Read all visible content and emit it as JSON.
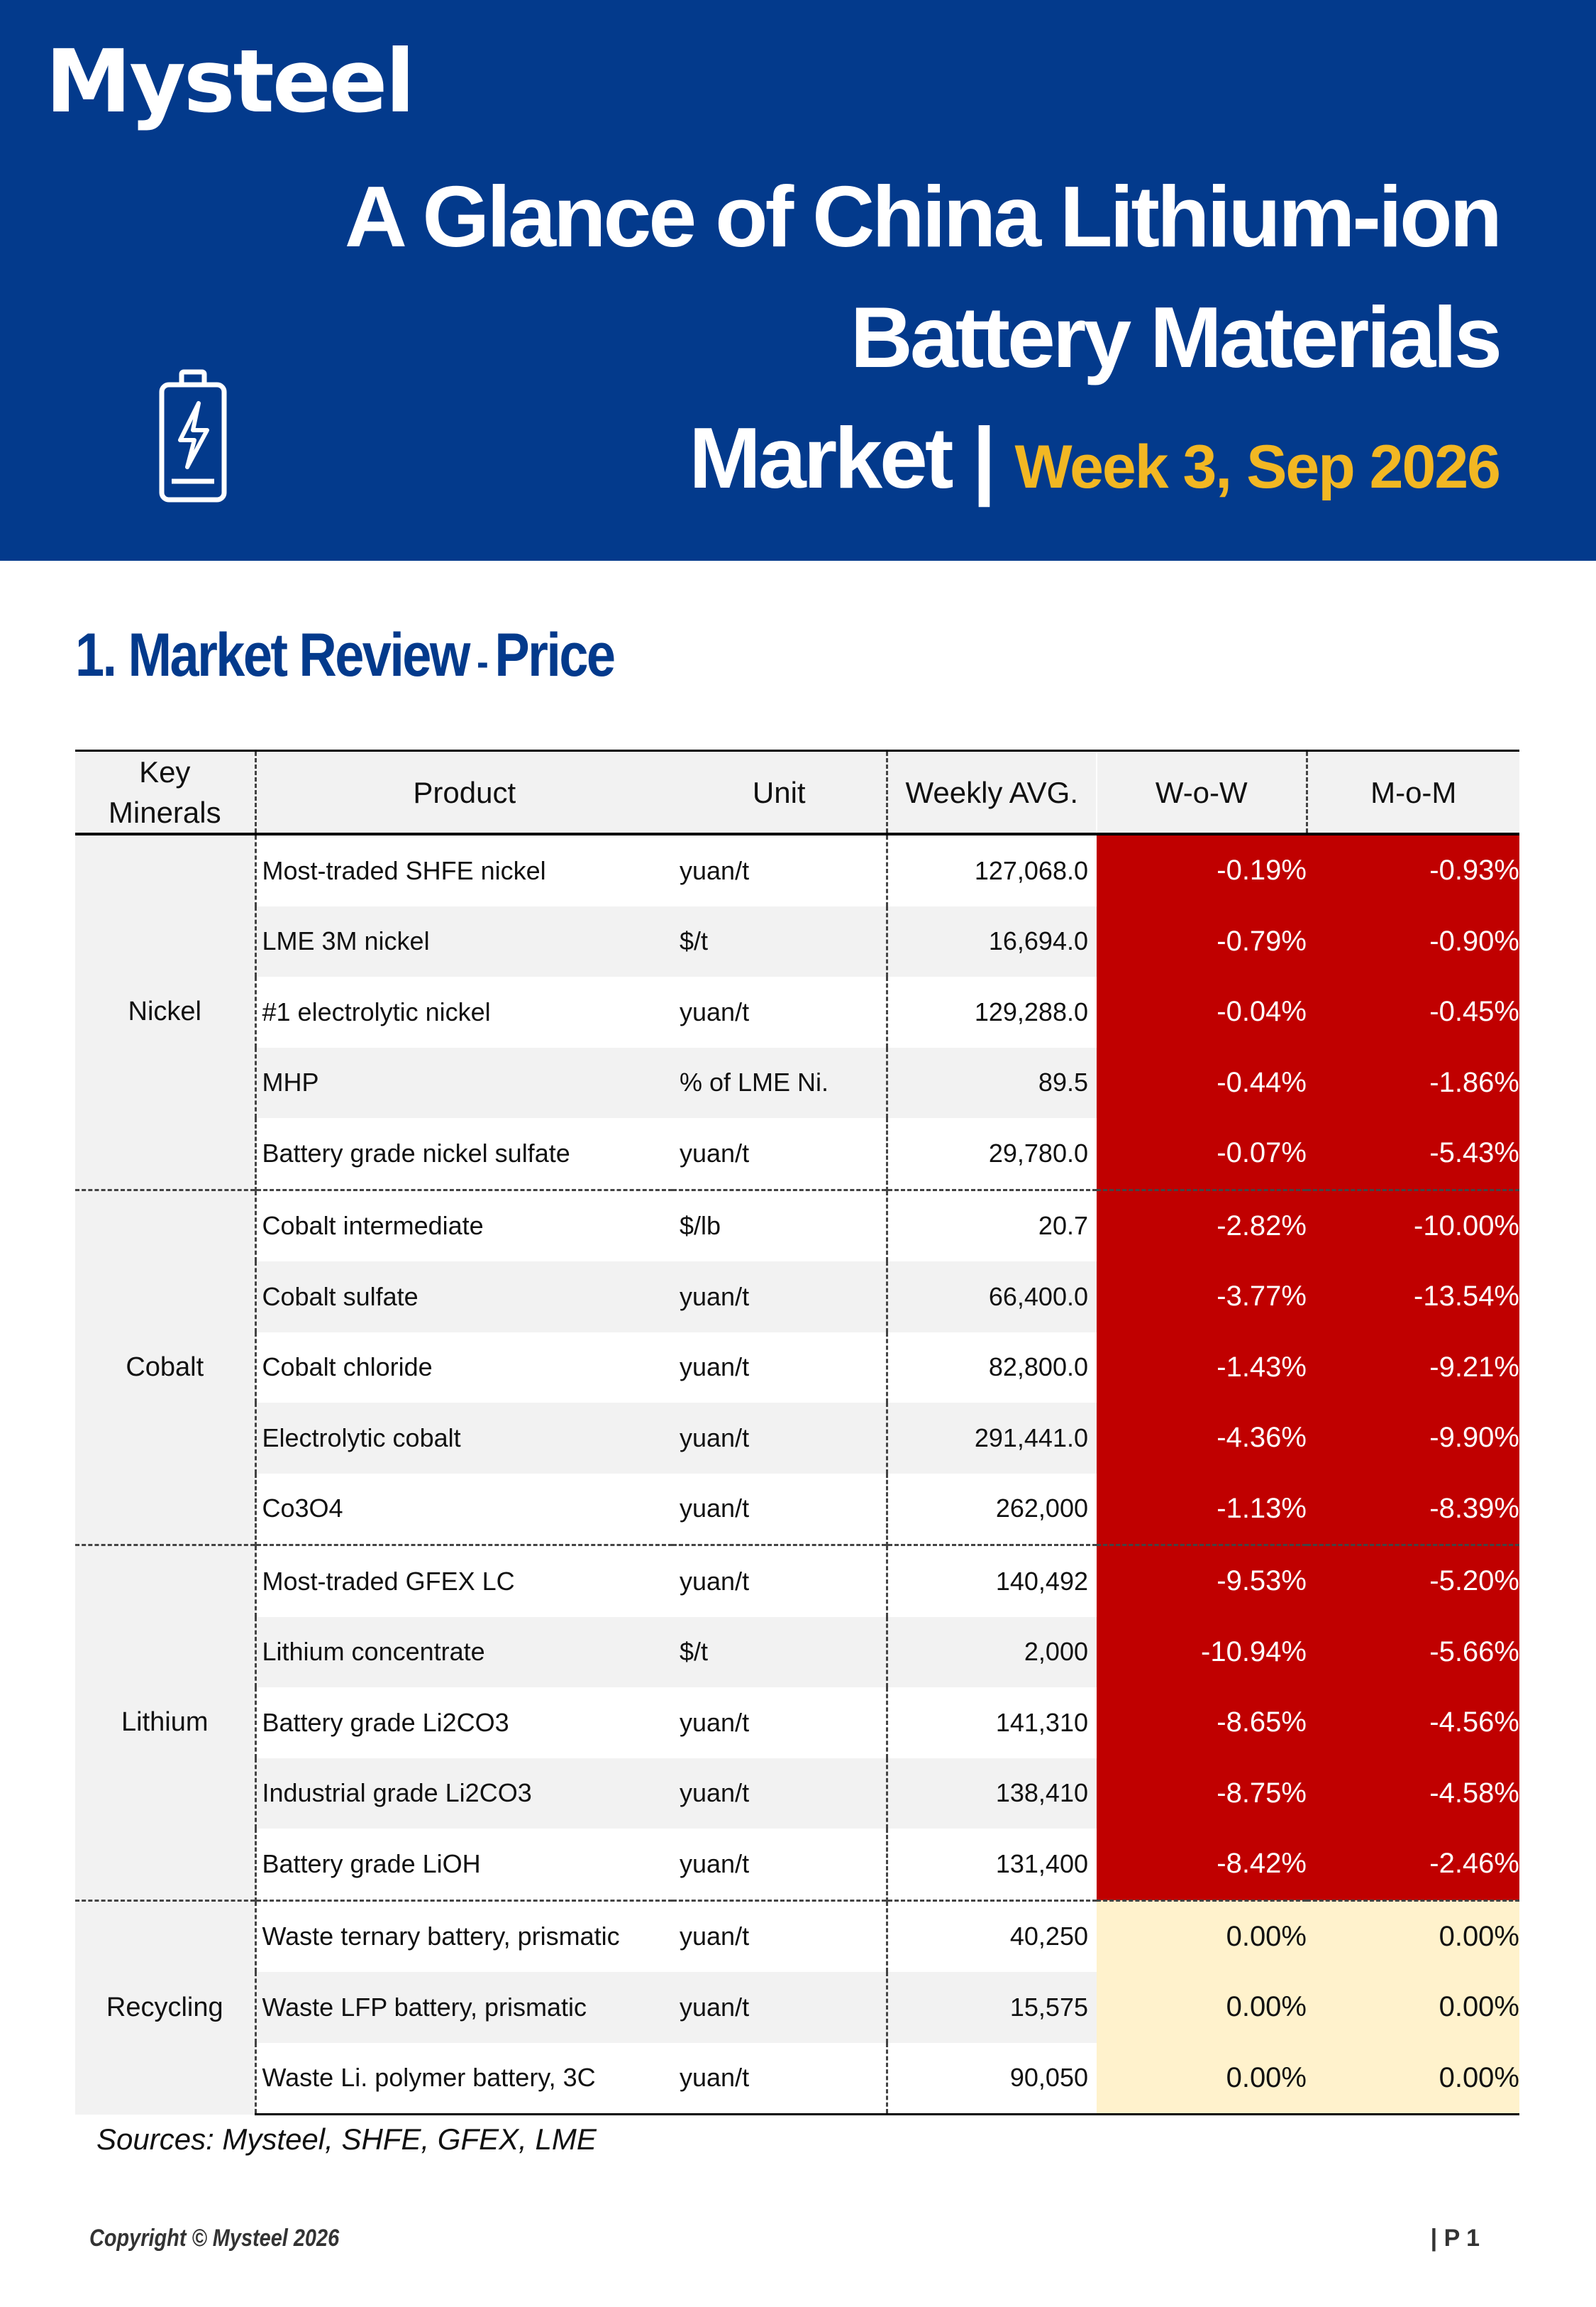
{
  "header": {
    "logo": "Mysteel",
    "title_line1": "A Glance of China Lithium-ion",
    "title_line2": "Battery Materials",
    "title_line3": "Market |",
    "week": "Week 3, Sep 2026",
    "icon": "battery-charging-icon"
  },
  "section": {
    "title_main": "1. Market Review",
    "title_dash": " - ",
    "title_sub": "Price"
  },
  "table": {
    "headers": {
      "key_minerals_l1": "Key",
      "key_minerals_l2": "Minerals",
      "product": "Product",
      "unit": "Unit",
      "weekly_avg": "Weekly AVG.",
      "wow": "W-o-W",
      "mom": "M-o-M"
    },
    "groups": [
      {
        "mineral": "Nickel",
        "rows": [
          {
            "product": "Most-traded SHFE nickel",
            "unit": "yuan/t",
            "avg": "127,068.0",
            "wow": "-0.19%",
            "mom": "-0.93%"
          },
          {
            "product": "LME 3M nickel",
            "unit": "$/t",
            "avg": "16,694.0",
            "wow": "-0.79%",
            "mom": "-0.90%"
          },
          {
            "product": "#1 electrolytic nickel",
            "unit": "yuan/t",
            "avg": "129,288.0",
            "wow": "-0.04%",
            "mom": "-0.45%"
          },
          {
            "product": "MHP",
            "unit": "% of LME Ni.",
            "avg": "89.5",
            "wow": "-0.44%",
            "mom": "-1.86%"
          },
          {
            "product": "Battery grade nickel sulfate",
            "unit": "yuan/t",
            "avg": "29,780.0",
            "wow": "-0.07%",
            "mom": "-5.43%"
          }
        ]
      },
      {
        "mineral": "Cobalt",
        "rows": [
          {
            "product": "Cobalt intermediate",
            "unit": "$/lb",
            "avg": "20.7",
            "wow": "-2.82%",
            "mom": "-10.00%"
          },
          {
            "product": "Cobalt sulfate",
            "unit": "yuan/t",
            "avg": "66,400.0",
            "wow": "-3.77%",
            "mom": "-13.54%"
          },
          {
            "product": "Cobalt chloride",
            "unit": "yuan/t",
            "avg": "82,800.0",
            "wow": "-1.43%",
            "mom": "-9.21%"
          },
          {
            "product": "Electrolytic cobalt",
            "unit": "yuan/t",
            "avg": "291,441.0",
            "wow": "-4.36%",
            "mom": "-9.90%"
          },
          {
            "product": "Co3O4",
            "unit": "yuan/t",
            "avg": "262,000",
            "wow": "-1.13%",
            "mom": "-8.39%"
          }
        ]
      },
      {
        "mineral": "Lithium",
        "rows": [
          {
            "product": "Most-traded GFEX LC",
            "unit": "yuan/t",
            "avg": "140,492",
            "wow": "-9.53%",
            "mom": "-5.20%"
          },
          {
            "product": "Lithium concentrate",
            "unit": "$/t",
            "avg": "2,000",
            "wow": "-10.94%",
            "mom": "-5.66%"
          },
          {
            "product": "Battery grade Li2CO3",
            "unit": "yuan/t",
            "avg": "141,310",
            "wow": "-8.65%",
            "mom": "-4.56%"
          },
          {
            "product": "Industrial grade Li2CO3",
            "unit": "yuan/t",
            "avg": "138,410",
            "wow": "-8.75%",
            "mom": "-4.58%"
          },
          {
            "product": "Battery grade LiOH",
            "unit": "yuan/t",
            "avg": "131,400",
            "wow": "-8.42%",
            "mom": "-2.46%"
          }
        ]
      },
      {
        "mineral": "Recycling",
        "rows": [
          {
            "product": "Waste ternary battery, prismatic",
            "unit": "yuan/t",
            "avg": "40,250",
            "wow": "0.00%",
            "mom": "0.00%"
          },
          {
            "product": "Waste LFP battery, prismatic",
            "unit": "yuan/t",
            "avg": "15,575",
            "wow": "0.00%",
            "mom": "0.00%"
          },
          {
            "product": "Waste Li. polymer battery, 3C",
            "unit": "yuan/t",
            "avg": "90,050",
            "wow": "0.00%",
            "mom": "0.00%"
          }
        ]
      }
    ],
    "colors": {
      "decline": "#C00000",
      "flat": "#FFF2CC",
      "header_bg": "#033A8C",
      "accent": "#F2B723"
    }
  },
  "footer": {
    "sources": "Sources: Mysteel, SHFE, GFEX, LME",
    "copyright": "Copyright © Mysteel 2026",
    "page": "| P 1"
  }
}
